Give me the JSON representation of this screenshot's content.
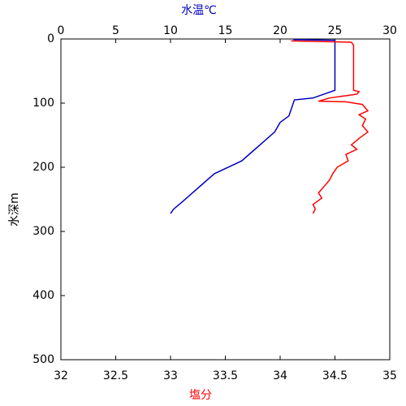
{
  "chart_data": {
    "type": "line",
    "x2label": "水温℃",
    "xlabel": "塩分",
    "ylabel": "水深m",
    "ylim": [
      0,
      500
    ],
    "y_inverted": true,
    "yticks": [
      0,
      100,
      200,
      300,
      400,
      500
    ],
    "xlim": [
      32,
      35
    ],
    "xticks": [
      32,
      32.5,
      33,
      33.5,
      34,
      34.5,
      35
    ],
    "x2lim": [
      0,
      30
    ],
    "x2ticks": [
      0,
      5,
      10,
      15,
      20,
      25,
      30
    ],
    "series": [
      {
        "color": "#0000c0",
        "axis": "x2",
        "x": [
          21.2,
          25.0,
          25.0,
          25.0,
          24.5,
          23.0,
          21.3,
          21.2,
          20.8,
          20.0,
          19.5,
          18.5,
          17.5,
          16.5,
          15.5,
          14.0,
          13.0,
          12.0,
          11.0,
          10.3,
          10.0
        ],
        "values": [
          1,
          2,
          10,
          80,
          83,
          92,
          95,
          100,
          120,
          130,
          145,
          160,
          175,
          190,
          198,
          210,
          225,
          240,
          255,
          265,
          272
        ]
      },
      {
        "color": "#ff0000",
        "x": [
          34.1,
          34.65,
          34.67,
          34.67,
          34.72,
          34.7,
          34.62,
          34.45,
          34.35,
          34.6,
          34.75,
          34.8,
          34.72,
          34.78,
          34.75,
          34.8,
          34.72,
          34.65,
          34.7,
          34.6,
          34.62,
          34.52,
          34.48,
          34.45,
          34.4,
          34.35,
          34.38,
          34.3,
          34.32,
          34.3
        ],
        "values": [
          3,
          5,
          10,
          80,
          82,
          86,
          88,
          92,
          97,
          98,
          102,
          112,
          118,
          125,
          135,
          145,
          155,
          165,
          172,
          180,
          190,
          200,
          210,
          220,
          230,
          240,
          248,
          258,
          265,
          272
        ]
      }
    ]
  }
}
